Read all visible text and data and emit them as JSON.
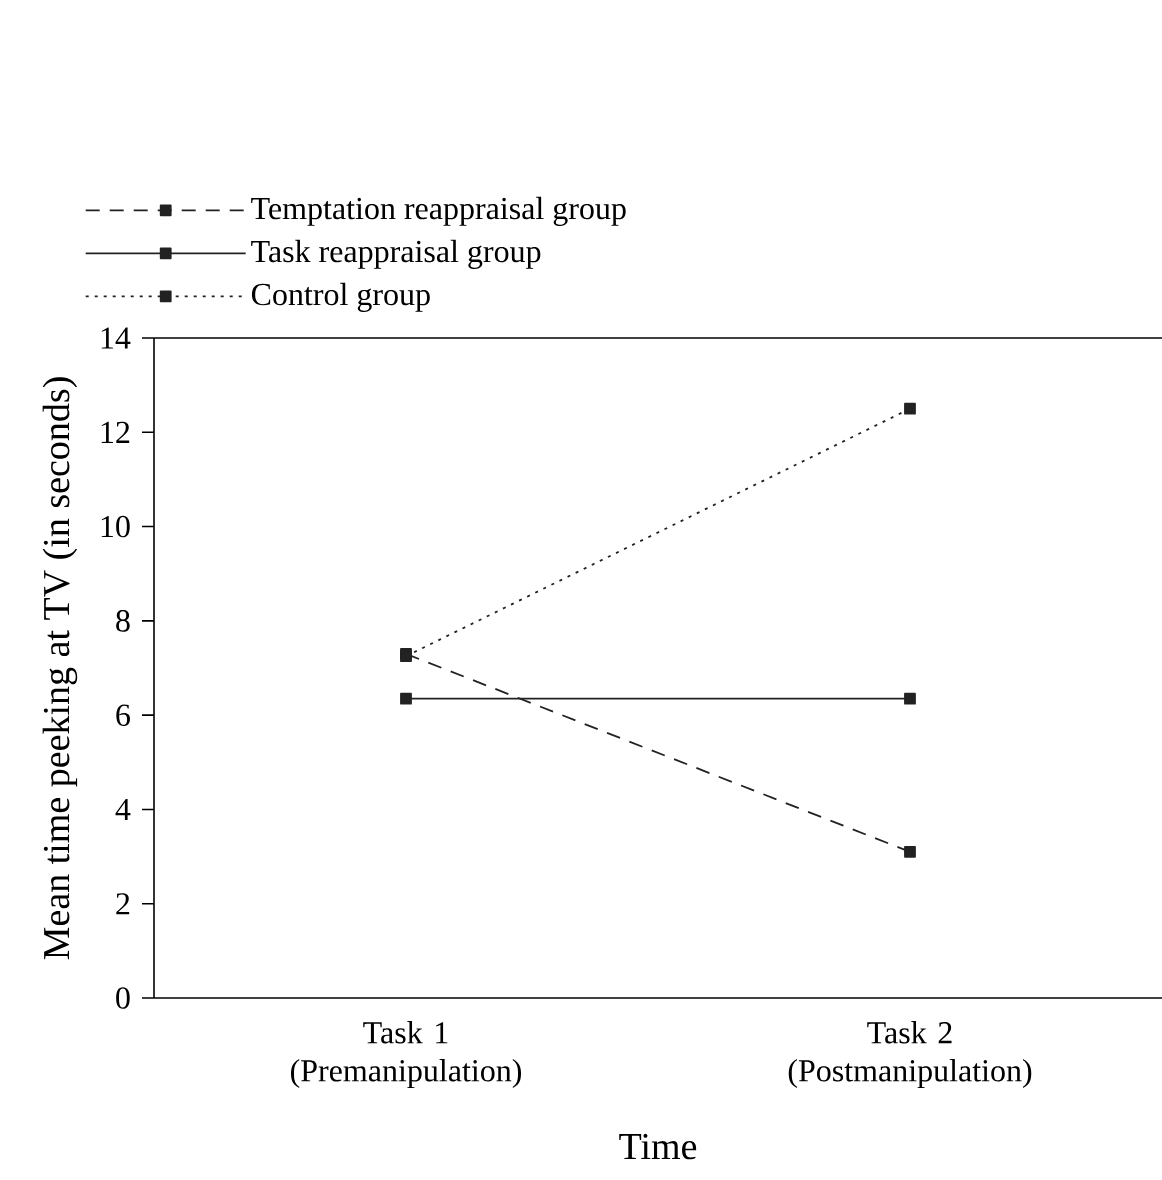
{
  "chart_data": {
    "type": "line",
    "xlabel": "Time",
    "ylabel": "Mean time peeking at TV (in seconds)",
    "categories": [
      "Task 1 (Premanipulation)",
      "Task 2 (Postmanipulation)"
    ],
    "series": [
      {
        "name": "Temptation reappraisal group",
        "color": "#222222",
        "line_style": "dashed",
        "values": [
          7.3,
          3.1
        ]
      },
      {
        "name": "Task reappraisal group",
        "color": "#222222",
        "line_style": "solid",
        "values": [
          6.35,
          6.35
        ]
      },
      {
        "name": "Control group",
        "color": "#222222",
        "line_style": "dotted",
        "values": [
          7.25,
          12.5
        ]
      }
    ],
    "ylim": [
      0,
      14
    ],
    "yticks": [
      0,
      2,
      4,
      6,
      8,
      10,
      12,
      14
    ],
    "marker": "square",
    "legend": "top left",
    "grid": false
  }
}
